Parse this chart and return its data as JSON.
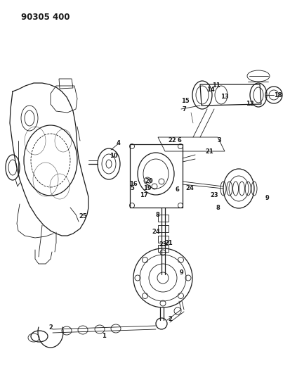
{
  "title": "90305 400",
  "bg_color": "#ffffff",
  "line_color": "#1a1a1a",
  "fig_width": 4.13,
  "fig_height": 5.33,
  "dpi": 100
}
